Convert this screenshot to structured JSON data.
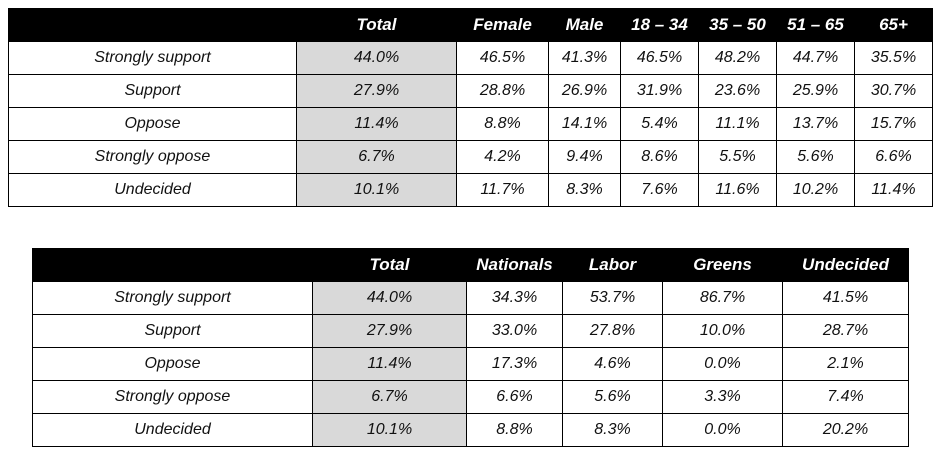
{
  "tables": [
    {
      "columns": [
        "Total",
        "Female",
        "Male",
        "18 – 34",
        "35 – 50",
        "51 – 65",
        "65+"
      ],
      "rows": [
        [
          "Strongly support",
          "44.0%",
          "46.5%",
          "41.3%",
          "46.5%",
          "48.2%",
          "44.7%",
          "35.5%"
        ],
        [
          "Support",
          "27.9%",
          "28.8%",
          "26.9%",
          "31.9%",
          "23.6%",
          "25.9%",
          "30.7%"
        ],
        [
          "Oppose",
          "11.4%",
          "8.8%",
          "14.1%",
          "5.4%",
          "11.1%",
          "13.7%",
          "15.7%"
        ],
        [
          "Strongly oppose",
          "6.7%",
          "4.2%",
          "9.4%",
          "8.6%",
          "5.5%",
          "5.6%",
          "6.6%"
        ],
        [
          "Undecided",
          "10.1%",
          "11.7%",
          "8.3%",
          "7.6%",
          "11.6%",
          "10.2%",
          "11.4%"
        ]
      ]
    },
    {
      "columns": [
        "Total",
        "Nationals",
        "Labor",
        "Greens",
        "Undecided"
      ],
      "rows": [
        [
          "Strongly support",
          "44.0%",
          "34.3%",
          "53.7%",
          "86.7%",
          "41.5%"
        ],
        [
          "Support",
          "27.9%",
          "33.0%",
          "27.8%",
          "10.0%",
          "28.7%"
        ],
        [
          "Oppose",
          "11.4%",
          "17.3%",
          "4.6%",
          "0.0%",
          "2.1%"
        ],
        [
          "Strongly oppose",
          "6.7%",
          "6.6%",
          "5.6%",
          "3.3%",
          "7.4%"
        ],
        [
          "Undecided",
          "10.1%",
          "8.8%",
          "8.3%",
          "0.0%",
          "20.2%"
        ]
      ]
    }
  ]
}
